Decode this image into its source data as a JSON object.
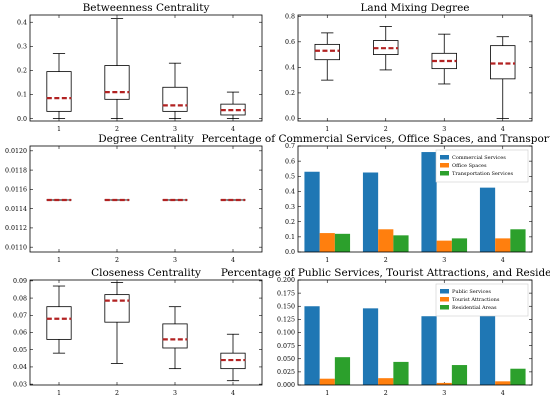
{
  "colors": {
    "median": "#b22222",
    "box": "#000000",
    "commercial": "#1f77b4",
    "tourist": "#ff7f0e",
    "residential": "#2ca02c"
  },
  "chart_data": [
    {
      "id": "betweenness",
      "type": "box",
      "title": "Betweenness Centrality",
      "categories": [
        "1",
        "2",
        "3",
        "4"
      ],
      "ylim": [
        -0.01,
        0.43
      ],
      "yticks": [
        "0.0",
        "0.1",
        "0.2",
        "0.3",
        "0.4"
      ],
      "ytick_values": [
        0,
        0.1,
        0.2,
        0.3,
        0.4
      ],
      "boxes": [
        {
          "min": 0.0,
          "q1": 0.03,
          "median": 0.085,
          "q3": 0.195,
          "max": 0.27
        },
        {
          "min": 0.0,
          "q1": 0.08,
          "median": 0.11,
          "q3": 0.22,
          "max": 0.415
        },
        {
          "min": 0.0,
          "q1": 0.03,
          "median": 0.055,
          "q3": 0.13,
          "max": 0.23
        },
        {
          "min": 0.0,
          "q1": 0.015,
          "median": 0.035,
          "q3": 0.06,
          "max": 0.11
        }
      ]
    },
    {
      "id": "landmix",
      "type": "box",
      "title": "Land Mixing Degree",
      "categories": [
        "1",
        "2",
        "3",
        "4"
      ],
      "ylim": [
        -0.02,
        0.81
      ],
      "yticks": [
        "0.0",
        "0.2",
        "0.4",
        "0.6",
        "0.8"
      ],
      "ytick_values": [
        0,
        0.2,
        0.4,
        0.6,
        0.8
      ],
      "boxes": [
        {
          "min": 0.3,
          "q1": 0.46,
          "median": 0.53,
          "q3": 0.58,
          "max": 0.67
        },
        {
          "min": 0.38,
          "q1": 0.5,
          "median": 0.55,
          "q3": 0.61,
          "max": 0.72
        },
        {
          "min": 0.27,
          "q1": 0.39,
          "median": 0.45,
          "q3": 0.51,
          "max": 0.66
        },
        {
          "min": 0.0,
          "q1": 0.31,
          "median": 0.43,
          "q3": 0.57,
          "max": 0.64
        }
      ]
    },
    {
      "id": "degree",
      "type": "box",
      "title": "Degree Centrality",
      "categories": [
        "1",
        "2",
        "3",
        "4"
      ],
      "ylim": [
        0.01095,
        0.01205
      ],
      "yticks": [
        "0.0110",
        "0.0112",
        "0.0114",
        "0.0116",
        "0.0118",
        "0.0120"
      ],
      "ytick_values": [
        0.011,
        0.0112,
        0.0114,
        0.0116,
        0.0118,
        0.012
      ],
      "boxes": [
        {
          "min": 0.01149,
          "q1": 0.01149,
          "median": 0.01149,
          "q3": 0.01149,
          "max": 0.01149
        },
        {
          "min": 0.01149,
          "q1": 0.01149,
          "median": 0.01149,
          "q3": 0.01149,
          "max": 0.01149
        },
        {
          "min": 0.01149,
          "q1": 0.01149,
          "median": 0.01149,
          "q3": 0.01149,
          "max": 0.01149
        },
        {
          "min": 0.01149,
          "q1": 0.01149,
          "median": 0.01149,
          "q3": 0.01149,
          "max": 0.01149
        }
      ]
    },
    {
      "id": "commercial",
      "type": "bar",
      "title": "Percentage of Commercial Services, Office Spaces, and Transportation Services",
      "categories": [
        "1",
        "2",
        "3",
        "4"
      ],
      "ylim": [
        0,
        0.7
      ],
      "yticks": [
        "0.0",
        "0.1",
        "0.2",
        "0.3",
        "0.4",
        "0.5",
        "0.6",
        "0.7"
      ],
      "ytick_values": [
        0,
        0.1,
        0.2,
        0.3,
        0.4,
        0.5,
        0.6,
        0.7
      ],
      "legend": "top-right",
      "series": [
        {
          "name": "Commercial Services",
          "color": "#1f77b4",
          "values": [
            0.53,
            0.525,
            0.66,
            0.425
          ]
        },
        {
          "name": "Office Spaces",
          "color": "#ff7f0e",
          "values": [
            0.125,
            0.15,
            0.075,
            0.09
          ]
        },
        {
          "name": "Transportation Services",
          "color": "#2ca02c",
          "values": [
            0.12,
            0.11,
            0.09,
            0.15
          ]
        }
      ]
    },
    {
      "id": "closeness",
      "type": "box",
      "title": "Closeness Centrality",
      "categories": [
        "1",
        "2",
        "3",
        "4"
      ],
      "ylim": [
        0.0295,
        0.0905
      ],
      "yticks": [
        "0.03",
        "0.04",
        "0.05",
        "0.06",
        "0.07",
        "0.08",
        "0.09"
      ],
      "ytick_values": [
        0.03,
        0.04,
        0.05,
        0.06,
        0.07,
        0.08,
        0.09
      ],
      "boxes": [
        {
          "min": 0.048,
          "q1": 0.056,
          "median": 0.068,
          "q3": 0.075,
          "max": 0.087
        },
        {
          "min": 0.042,
          "q1": 0.066,
          "median": 0.0785,
          "q3": 0.082,
          "max": 0.089
        },
        {
          "min": 0.039,
          "q1": 0.051,
          "median": 0.056,
          "q3": 0.065,
          "max": 0.075
        },
        {
          "min": 0.032,
          "q1": 0.039,
          "median": 0.044,
          "q3": 0.048,
          "max": 0.059
        }
      ]
    },
    {
      "id": "public",
      "type": "bar",
      "title": "Percentage of Public Services, Tourist Attractions, and Residential Areas",
      "categories": [
        "1",
        "2",
        "3",
        "4"
      ],
      "ylim": [
        0,
        0.2
      ],
      "yticks": [
        "0.000",
        "0.025",
        "0.050",
        "0.075",
        "0.100",
        "0.125",
        "0.150",
        "0.175",
        "0.200"
      ],
      "ytick_values": [
        0,
        0.025,
        0.05,
        0.075,
        0.1,
        0.125,
        0.15,
        0.175,
        0.2
      ],
      "legend": "top-right",
      "series": [
        {
          "name": "Public Services",
          "color": "#1f77b4",
          "values": [
            0.15,
            0.146,
            0.131,
            0.138
          ]
        },
        {
          "name": "Tourist Attractions",
          "color": "#ff7f0e",
          "values": [
            0.012,
            0.013,
            0.004,
            0.007
          ]
        },
        {
          "name": "Residential Areas",
          "color": "#2ca02c",
          "values": [
            0.053,
            0.044,
            0.038,
            0.031
          ]
        }
      ]
    }
  ]
}
